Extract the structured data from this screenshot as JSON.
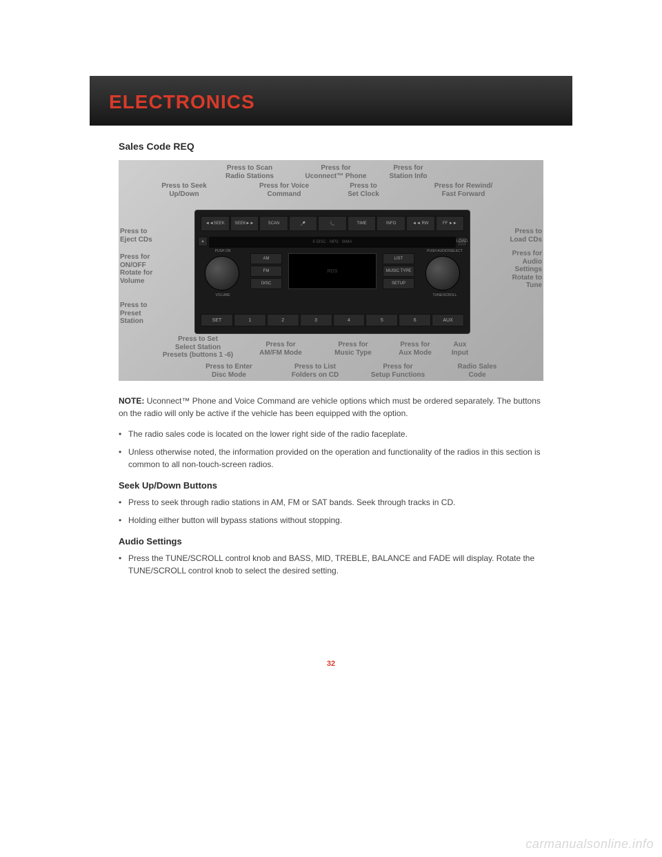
{
  "header": {
    "title": "ELECTRONICS"
  },
  "section": {
    "title": "Sales Code REQ"
  },
  "diagram": {
    "callouts": {
      "scan": "Press to Scan\nRadio Stations",
      "uconnect": "Press for\nUconnect™ Phone",
      "station_info": "Press for\nStation Info",
      "seek": "Press to Seek\nUp/Down",
      "voice": "Press for Voice\nCommand",
      "clock": "Press to\nSet Clock",
      "rwff": "Press for Rewind/\nFast Forward",
      "eject": "Press to\nEject CDs",
      "load": "Press to\nLoad CDs",
      "onoff": "Press for\nON/OFF\nRotate for\nVolume",
      "audio": "Press for\nAudio\nSettings\nRotate to\nTune",
      "preset": "Press to\nPreset\nStation",
      "presets": "Press to Set\nSelect Station\nPresets (buttons 1 -6)",
      "amfm": "Press for\nAM/FM Mode",
      "music": "Press for\nMusic Type",
      "auxmode": "Press for\nAux Mode",
      "auxin": "Aux\nInput",
      "disc": "Press to Enter\nDisc Mode",
      "list": "Press to List\nFolders on CD",
      "setup": "Press for\nSetup Functions",
      "salescode": "Radio Sales\nCode"
    },
    "buttons_top": [
      "◄◄SEEK",
      "SEEK►►",
      "SCAN",
      "🎤",
      "📞",
      "TIME",
      "INFO",
      "◄◄ RW",
      "FF ►►"
    ],
    "cd_slot_label": "6 DISC · MP3 · WMA",
    "mid_left": [
      "AM",
      "FM",
      "DISC"
    ],
    "mid_right": [
      "LIST",
      "MUSIC TYPE",
      "SETUP"
    ],
    "presets": [
      "SET",
      "1",
      "2",
      "3",
      "4",
      "5",
      "6",
      "AUX"
    ],
    "knob_left_top": "PUSH ON",
    "knob_left_bottom": "VOLUME",
    "knob_right_top": "PUSH AUDIO/SELECT",
    "knob_right_bottom": "TUNE/SCROLL",
    "eject_label": "▲",
    "load_label": "LOAD",
    "display_brand": "RDS"
  },
  "note": {
    "label": "NOTE:",
    "text": "Uconnect™ Phone and Voice Command are vehicle options which must be ordered separately. The buttons on the radio will only be active if the vehicle has been equipped with the option."
  },
  "bullets_main": [
    "The radio sales code is located on the lower right side of the radio faceplate.",
    "Unless otherwise noted, the information provided on the operation and functionality of the radios in this section is common to all non-touch-screen radios."
  ],
  "seek": {
    "heading": "Seek Up/Down Buttons",
    "bullets": [
      "Press to seek through radio stations in AM, FM or SAT bands. Seek through tracks in CD.",
      "Holding either button will bypass stations without stopping."
    ]
  },
  "audio": {
    "heading": "Audio Settings",
    "bullets": [
      "Press the TUNE/SCROLL control knob and BASS, MID, TREBLE, BALANCE and FADE will display. Rotate the TUNE/SCROLL control knob to select the desired setting."
    ]
  },
  "page_number": "32",
  "watermark": "carmanualsonline.info"
}
